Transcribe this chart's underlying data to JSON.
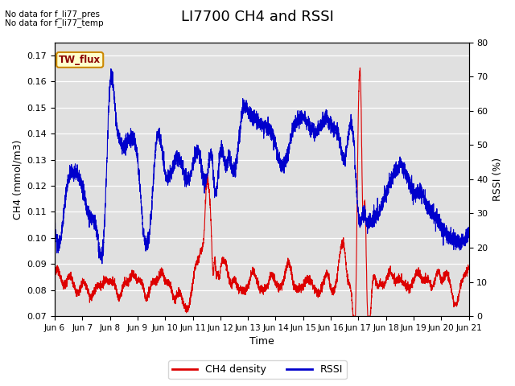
{
  "title": "LI7700 CH4 and RSSI",
  "xlabel": "Time",
  "ylabel_left": "CH4 (mmol/m3)",
  "ylabel_right": "RSSI (%)",
  "ylim_left": [
    0.07,
    0.175
  ],
  "ylim_right": [
    0,
    80
  ],
  "yticks_left": [
    0.07,
    0.08,
    0.09,
    0.1,
    0.11,
    0.12,
    0.13,
    0.14,
    0.15,
    0.16,
    0.17
  ],
  "yticks_right": [
    0,
    10,
    20,
    30,
    40,
    50,
    60,
    70,
    80
  ],
  "xtick_labels": [
    "Jun 6",
    "Jun 7",
    "Jun 8",
    "Jun 9",
    "Jun 10",
    "Jun 11",
    "Jun 12",
    "Jun 13",
    "Jun 14",
    "Jun 15",
    "Jun 16",
    "Jun 17",
    "Jun 18",
    "Jun 19",
    "Jun 20",
    "Jun 21"
  ],
  "no_data_text1": "No data for f_li77_pres",
  "no_data_text2": "No data for f_li77_temp",
  "tw_flux_label": "TW_flux",
  "ch4_color": "#dd0000",
  "rssi_color": "#0000cc",
  "legend_ch4": "CH4 density",
  "legend_rssi": "RSSI",
  "background_color": "#e0e0e0",
  "title_fontsize": 13,
  "figsize": [
    6.4,
    4.8
  ],
  "dpi": 100,
  "rssi_keypoints": [
    [
      0.0,
      26
    ],
    [
      0.3,
      28
    ],
    [
      0.5,
      40
    ],
    [
      0.7,
      42
    ],
    [
      1.0,
      38
    ],
    [
      1.2,
      30
    ],
    [
      1.5,
      26
    ],
    [
      1.8,
      26
    ],
    [
      2.0,
      68
    ],
    [
      2.2,
      60
    ],
    [
      2.5,
      50
    ],
    [
      2.8,
      52
    ],
    [
      3.0,
      46
    ],
    [
      3.2,
      26
    ],
    [
      3.5,
      30
    ],
    [
      3.7,
      52
    ],
    [
      4.0,
      42
    ],
    [
      4.3,
      44
    ],
    [
      4.5,
      46
    ],
    [
      4.8,
      40
    ],
    [
      5.0,
      44
    ],
    [
      5.2,
      48
    ],
    [
      5.5,
      40
    ],
    [
      5.7,
      46
    ],
    [
      5.8,
      36
    ],
    [
      6.0,
      48
    ],
    [
      6.2,
      44
    ],
    [
      6.3,
      46
    ],
    [
      6.5,
      42
    ],
    [
      6.8,
      60
    ],
    [
      7.0,
      60
    ],
    [
      7.2,
      58
    ],
    [
      7.5,
      56
    ],
    [
      7.8,
      54
    ],
    [
      8.0,
      50
    ],
    [
      8.2,
      44
    ],
    [
      8.5,
      50
    ],
    [
      8.7,
      56
    ],
    [
      9.0,
      58
    ],
    [
      9.2,
      56
    ],
    [
      9.5,
      54
    ],
    [
      9.8,
      58
    ],
    [
      10.0,
      56
    ],
    [
      10.3,
      52
    ],
    [
      10.5,
      46
    ],
    [
      10.8,
      54
    ],
    [
      11.0,
      30
    ],
    [
      11.2,
      30
    ],
    [
      11.3,
      28
    ],
    [
      11.5,
      28
    ],
    [
      11.7,
      30
    ],
    [
      12.0,
      36
    ],
    [
      12.2,
      40
    ],
    [
      12.5,
      44
    ],
    [
      12.8,
      40
    ],
    [
      13.0,
      36
    ],
    [
      13.3,
      36
    ],
    [
      13.5,
      32
    ],
    [
      13.7,
      30
    ],
    [
      14.0,
      26
    ],
    [
      14.2,
      24
    ],
    [
      14.5,
      22
    ],
    [
      15.0,
      24
    ]
  ],
  "ch4_keypoints": [
    [
      0.0,
      0.086
    ],
    [
      0.2,
      0.084
    ],
    [
      0.4,
      0.082
    ],
    [
      0.5,
      0.086
    ],
    [
      0.7,
      0.083
    ],
    [
      0.9,
      0.08
    ],
    [
      1.0,
      0.082
    ],
    [
      1.2,
      0.078
    ],
    [
      1.3,
      0.076
    ],
    [
      1.5,
      0.082
    ],
    [
      1.7,
      0.083
    ],
    [
      1.8,
      0.085
    ],
    [
      2.0,
      0.082
    ],
    [
      2.2,
      0.08
    ],
    [
      2.3,
      0.076
    ],
    [
      2.5,
      0.083
    ],
    [
      2.7,
      0.085
    ],
    [
      2.8,
      0.087
    ],
    [
      3.0,
      0.083
    ],
    [
      3.2,
      0.08
    ],
    [
      3.3,
      0.076
    ],
    [
      3.5,
      0.083
    ],
    [
      3.7,
      0.085
    ],
    [
      3.9,
      0.087
    ],
    [
      4.0,
      0.083
    ],
    [
      4.2,
      0.08
    ],
    [
      4.3,
      0.076
    ],
    [
      4.5,
      0.08
    ],
    [
      4.7,
      0.075
    ],
    [
      4.9,
      0.076
    ],
    [
      5.0,
      0.082
    ],
    [
      5.1,
      0.088
    ],
    [
      5.2,
      0.09
    ],
    [
      5.3,
      0.094
    ],
    [
      5.4,
      0.1
    ],
    [
      5.5,
      0.122
    ],
    [
      5.6,
      0.118
    ],
    [
      5.65,
      0.11
    ],
    [
      5.7,
      0.095
    ],
    [
      5.75,
      0.088
    ],
    [
      5.8,
      0.093
    ],
    [
      5.85,
      0.086
    ],
    [
      5.9,
      0.087
    ],
    [
      5.95,
      0.085
    ],
    [
      6.0,
      0.087
    ],
    [
      6.1,
      0.09
    ],
    [
      6.2,
      0.088
    ],
    [
      6.3,
      0.084
    ],
    [
      6.4,
      0.082
    ],
    [
      6.5,
      0.085
    ],
    [
      6.6,
      0.083
    ],
    [
      6.7,
      0.082
    ],
    [
      6.8,
      0.081
    ],
    [
      6.9,
      0.08
    ],
    [
      7.0,
      0.081
    ],
    [
      7.1,
      0.084
    ],
    [
      7.2,
      0.086
    ],
    [
      7.3,
      0.083
    ],
    [
      7.5,
      0.081
    ],
    [
      7.7,
      0.083
    ],
    [
      7.9,
      0.086
    ],
    [
      8.0,
      0.082
    ],
    [
      8.2,
      0.08
    ],
    [
      8.3,
      0.083
    ],
    [
      8.5,
      0.091
    ],
    [
      8.6,
      0.086
    ],
    [
      8.7,
      0.083
    ],
    [
      8.8,
      0.082
    ],
    [
      9.0,
      0.081
    ],
    [
      9.2,
      0.083
    ],
    [
      9.3,
      0.082
    ],
    [
      9.5,
      0.08
    ],
    [
      9.7,
      0.083
    ],
    [
      9.9,
      0.086
    ],
    [
      10.0,
      0.08
    ],
    [
      10.2,
      0.082
    ],
    [
      10.5,
      0.096
    ],
    [
      10.6,
      0.086
    ],
    [
      10.7,
      0.083
    ],
    [
      10.8,
      0.072
    ],
    [
      10.9,
      0.074
    ],
    [
      11.0,
      0.148
    ],
    [
      11.05,
      0.163
    ],
    [
      11.1,
      0.148
    ],
    [
      11.15,
      0.112
    ],
    [
      11.2,
      0.108
    ],
    [
      11.25,
      0.11
    ],
    [
      11.3,
      0.083
    ],
    [
      11.5,
      0.082
    ],
    [
      11.7,
      0.083
    ],
    [
      11.8,
      0.084
    ],
    [
      11.9,
      0.082
    ],
    [
      12.0,
      0.083
    ],
    [
      12.2,
      0.085
    ],
    [
      12.3,
      0.083
    ],
    [
      12.5,
      0.085
    ],
    [
      12.7,
      0.083
    ],
    [
      12.9,
      0.082
    ],
    [
      13.0,
      0.083
    ],
    [
      13.2,
      0.085
    ],
    [
      13.3,
      0.083
    ],
    [
      13.5,
      0.085
    ],
    [
      13.7,
      0.083
    ],
    [
      13.9,
      0.087
    ],
    [
      14.0,
      0.083
    ],
    [
      14.2,
      0.085
    ],
    [
      14.3,
      0.083
    ],
    [
      14.5,
      0.075
    ],
    [
      14.7,
      0.083
    ],
    [
      14.9,
      0.087
    ],
    [
      15.0,
      0.088
    ]
  ]
}
